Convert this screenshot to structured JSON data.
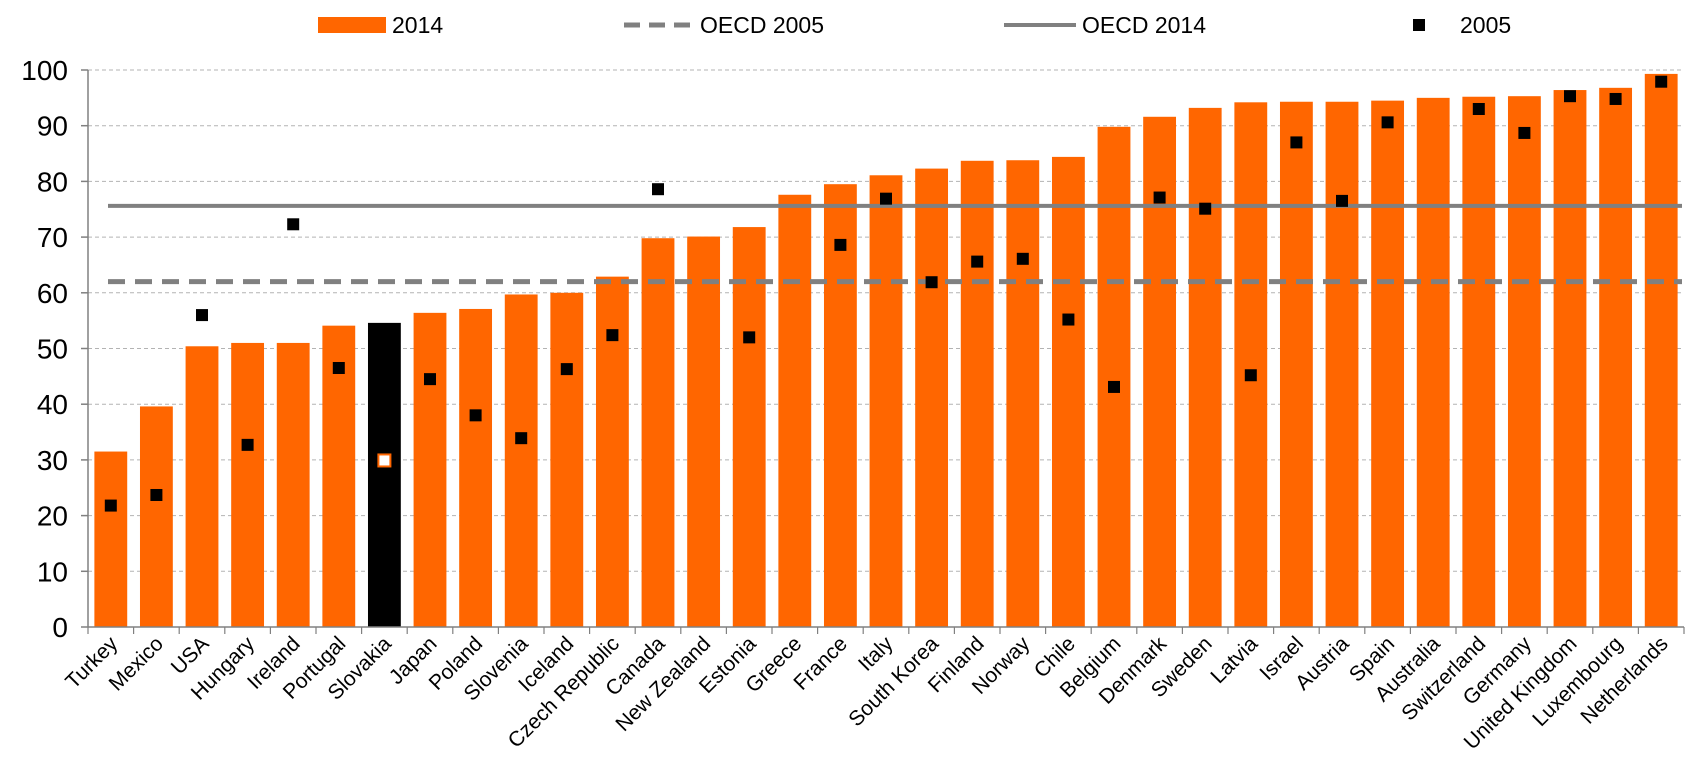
{
  "chart_data": {
    "type": "bar",
    "title": "",
    "xlabel": "",
    "ylabel": "",
    "ylim": [
      0,
      100
    ],
    "yticks": [
      0,
      10,
      20,
      30,
      40,
      50,
      60,
      70,
      80,
      90,
      100
    ],
    "grid": true,
    "legend_placement": "top",
    "highlight_category": "Slovakia",
    "categories": [
      "Turkey",
      "Mexico",
      "USA",
      "Hungary",
      "Ireland",
      "Portugal",
      "Slovakia",
      "Japan",
      "Poland",
      "Slovenia",
      "Iceland",
      "Czech Republic",
      "Canada",
      "New Zealand",
      "Estonia",
      "Greece",
      "France",
      "Italy",
      "South Korea",
      "Finland",
      "Norway",
      "Chile",
      "Belgium",
      "Denmark",
      "Sweden",
      "Latvia",
      "Israel",
      "Austria",
      "Spain",
      "Australia",
      "Switzerland",
      "Germany",
      "United Kingdom",
      "Luxembourg",
      "Netherlands"
    ],
    "series": [
      {
        "name": "2014",
        "kind": "bar",
        "color": "#FF6600",
        "highlight_color": "#000000",
        "values": [
          31.5,
          39.6,
          50.4,
          51.0,
          51.0,
          54.1,
          54.6,
          56.4,
          57.1,
          59.7,
          60.0,
          62.9,
          69.8,
          70.1,
          71.8,
          77.6,
          79.5,
          81.1,
          82.3,
          83.7,
          83.8,
          84.4,
          89.8,
          91.6,
          93.2,
          94.2,
          94.3,
          94.3,
          94.5,
          95.0,
          95.2,
          95.3,
          96.4,
          96.8,
          99.3
        ]
      },
      {
        "name": "2005",
        "kind": "marker",
        "color": "#000000",
        "values": [
          21.8,
          23.7,
          56.0,
          32.7,
          72.3,
          46.5,
          29.9,
          44.5,
          38.0,
          33.9,
          46.3,
          52.4,
          78.6,
          null,
          52.0,
          null,
          68.6,
          76.9,
          61.9,
          65.6,
          66.1,
          55.2,
          43.1,
          77.1,
          75.1,
          45.2,
          87.0,
          76.5,
          90.6,
          null,
          93.0,
          88.7,
          95.3,
          94.8,
          97.9
        ]
      },
      {
        "name": "OECD 2005",
        "kind": "dashed-line",
        "color": "#808080",
        "value": 62.0
      },
      {
        "name": "OECD 2014",
        "kind": "line",
        "color": "#808080",
        "value": 75.6
      }
    ]
  }
}
